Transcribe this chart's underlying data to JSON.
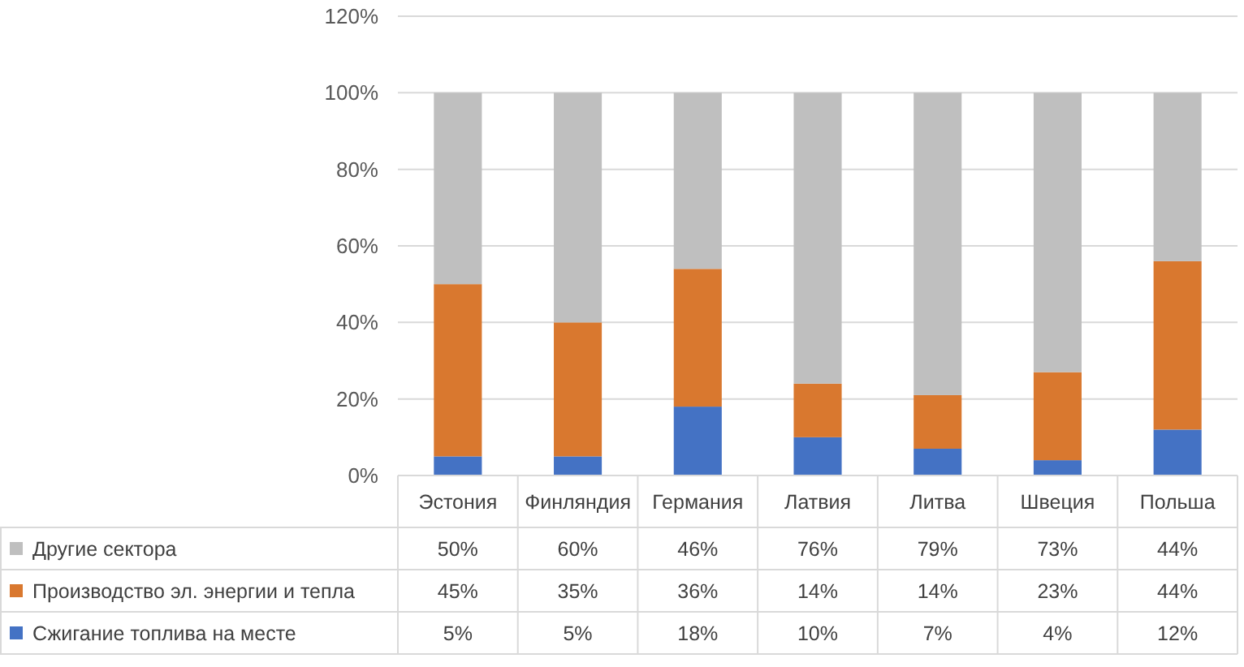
{
  "chart_data": {
    "type": "bar",
    "stacked": true,
    "categories": [
      "Эстония",
      "Финляндия",
      "Германия",
      "Латвия",
      "Литва",
      "Швеция",
      "Польша"
    ],
    "series": [
      {
        "name": "Сжигание топлива на месте",
        "color": "#4472c4",
        "values": [
          5,
          5,
          18,
          10,
          7,
          4,
          12
        ],
        "value_labels": [
          "5%",
          "5%",
          "18%",
          "10%",
          "7%",
          "4%",
          "12%"
        ]
      },
      {
        "name": "Производство эл. энергии и тепла",
        "color": "#d9782f",
        "values": [
          45,
          35,
          36,
          14,
          14,
          23,
          44
        ],
        "value_labels": [
          "45%",
          "35%",
          "36%",
          "14%",
          "14%",
          "23%",
          "44%"
        ]
      },
      {
        "name": "Другие сектора",
        "color": "#bfbfbf",
        "values": [
          50,
          60,
          46,
          76,
          79,
          73,
          44
        ],
        "value_labels": [
          "50%",
          "60%",
          "46%",
          "76%",
          "79%",
          "73%",
          "44%"
        ]
      }
    ],
    "ylim": [
      0,
      120
    ],
    "yticks": [
      {
        "value": 0,
        "label": "0%"
      },
      {
        "value": 20,
        "label": "20%"
      },
      {
        "value": 40,
        "label": "40%"
      },
      {
        "value": 60,
        "label": "60%"
      },
      {
        "value": 80,
        "label": "80%"
      },
      {
        "value": 100,
        "label": "100%"
      },
      {
        "value": 120,
        "label": "120%"
      }
    ],
    "grid": "y",
    "legend": "bottom left"
  }
}
